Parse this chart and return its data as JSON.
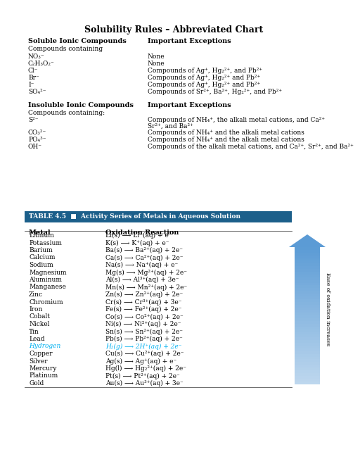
{
  "title": "Solubility Rules – Abbreviated Chart",
  "bg_color": "#f5f5f0",
  "section1_header_left": "Soluble Ionic Compounds",
  "section1_header_right": "Important Exceptions",
  "section1_subheader": "Compounds containing",
  "section1_rows": [
    [
      "NO₃⁻",
      "None"
    ],
    [
      "C₂H₃O₂⁻",
      "None"
    ],
    [
      "Cl⁻",
      "Compounds of Ag⁺, Hg₂²⁺, and Pb²⁺"
    ],
    [
      "Br⁻",
      "Compounds of Ag⁺, Hg₂²⁺ and Pb²⁺"
    ],
    [
      "I⁻",
      "Compounds of Ag⁺, Hg₂²⁺ and Pb²⁺"
    ],
    [
      "SO₄²⁻",
      "Compounds of Sr²⁺, Ba²⁺, Hg₂²⁺, and Pb²⁺"
    ]
  ],
  "section2_header_left": "Insoluble Ionic Compounds",
  "section2_header_right": "Important Exceptions",
  "section2_subheader": "Compounds containing:",
  "section2_rows": [
    [
      "S²⁻",
      "Compounds of NH₄⁺, the alkali metal cations, and Ca²⁺\n                              Sr²⁺, and Ba²⁺"
    ],
    [
      "CO₃²⁻",
      "Compounds of NH₄⁺ and the alkali metal cations"
    ],
    [
      "PO₄³⁻",
      "Compounds of NH₄⁺ and the alkali metal cations"
    ],
    [
      "OH⁻",
      "Compounds of the alkali metal cations, and Ca²⁺, Sr²⁺, and Ba²⁺"
    ]
  ],
  "table_header_bg": "#1c5f8a",
  "table_header_text": "#ffffff",
  "table_title": "TABLE 4.5  ■  Activity Series of Metals in Aqueous Solution",
  "table_col1": "Metal",
  "table_col2": "Oxidation Reaction",
  "table_rows": [
    [
      "Lithium",
      "Li(s) ⟶ Li⁺(aq) + e⁻",
      false
    ],
    [
      "Potassium",
      "K(s) ⟶ K⁺(aq) + e⁻",
      false
    ],
    [
      "Barium",
      "Ba(s) ⟶ Ba²⁺(aq) + 2e⁻",
      false
    ],
    [
      "Calcium",
      "Ca(s) ⟶ Ca²⁺(aq) + 2e⁻",
      false
    ],
    [
      "Sodium",
      "Na(s) ⟶ Na⁺(aq) + e⁻",
      false
    ],
    [
      "Magnesium",
      "Mg(s) ⟶ Mg²⁺(aq) + 2e⁻",
      false
    ],
    [
      "Aluminum",
      "Al(s) ⟶ Al³⁺(aq) + 3e⁻",
      false
    ],
    [
      "Manganese",
      "Mn(s) ⟶ Mn²⁺(aq) + 2e⁻",
      false
    ],
    [
      "Zinc",
      "Zn(s) ⟶ Zn²⁺(aq) + 2e⁻",
      false
    ],
    [
      "Chromium",
      "Cr(s) ⟶ Cr³⁺(aq) + 3e⁻",
      false
    ],
    [
      "Iron",
      "Fe(s) ⟶ Fe²⁺(aq) + 2e⁻",
      false
    ],
    [
      "Cobalt",
      "Co(s) ⟶ Co²⁺(aq) + 2e⁻",
      false
    ],
    [
      "Nickel",
      "Ni(s) ⟶ Ni²⁺(aq) + 2e⁻",
      false
    ],
    [
      "Tin",
      "Sn(s) ⟶ Sn²⁺(aq) + 2e⁻",
      false
    ],
    [
      "Lead",
      "Pb(s) ⟶ Pb²⁺(aq) + 2e⁻",
      false
    ],
    [
      "Hydrogen",
      "H₂(g) ⟶ 2H⁺(aq) + 2e⁻",
      true
    ],
    [
      "Copper",
      "Cu(s) ⟶ Cu²⁺(aq) + 2e⁻",
      false
    ],
    [
      "Silver",
      "Ag(s) ⟶ Ag⁺(aq) + e⁻",
      false
    ],
    [
      "Mercury",
      "Hg(l) ⟶ Hg₂²⁺(aq) + 2e⁻",
      false
    ],
    [
      "Platinum",
      "Pt(s) ⟶ Pt²⁺(aq) + 2e⁻",
      false
    ],
    [
      "Gold",
      "Au(s) ⟶ Au³⁺(aq) + 3e⁻",
      false
    ]
  ],
  "arrow_label": "Ease of oxidation increases",
  "arrow_color_dark": "#5b9bd5",
  "arrow_color_light": "#bdd7ee",
  "hydrogen_color": "#00b0f0"
}
